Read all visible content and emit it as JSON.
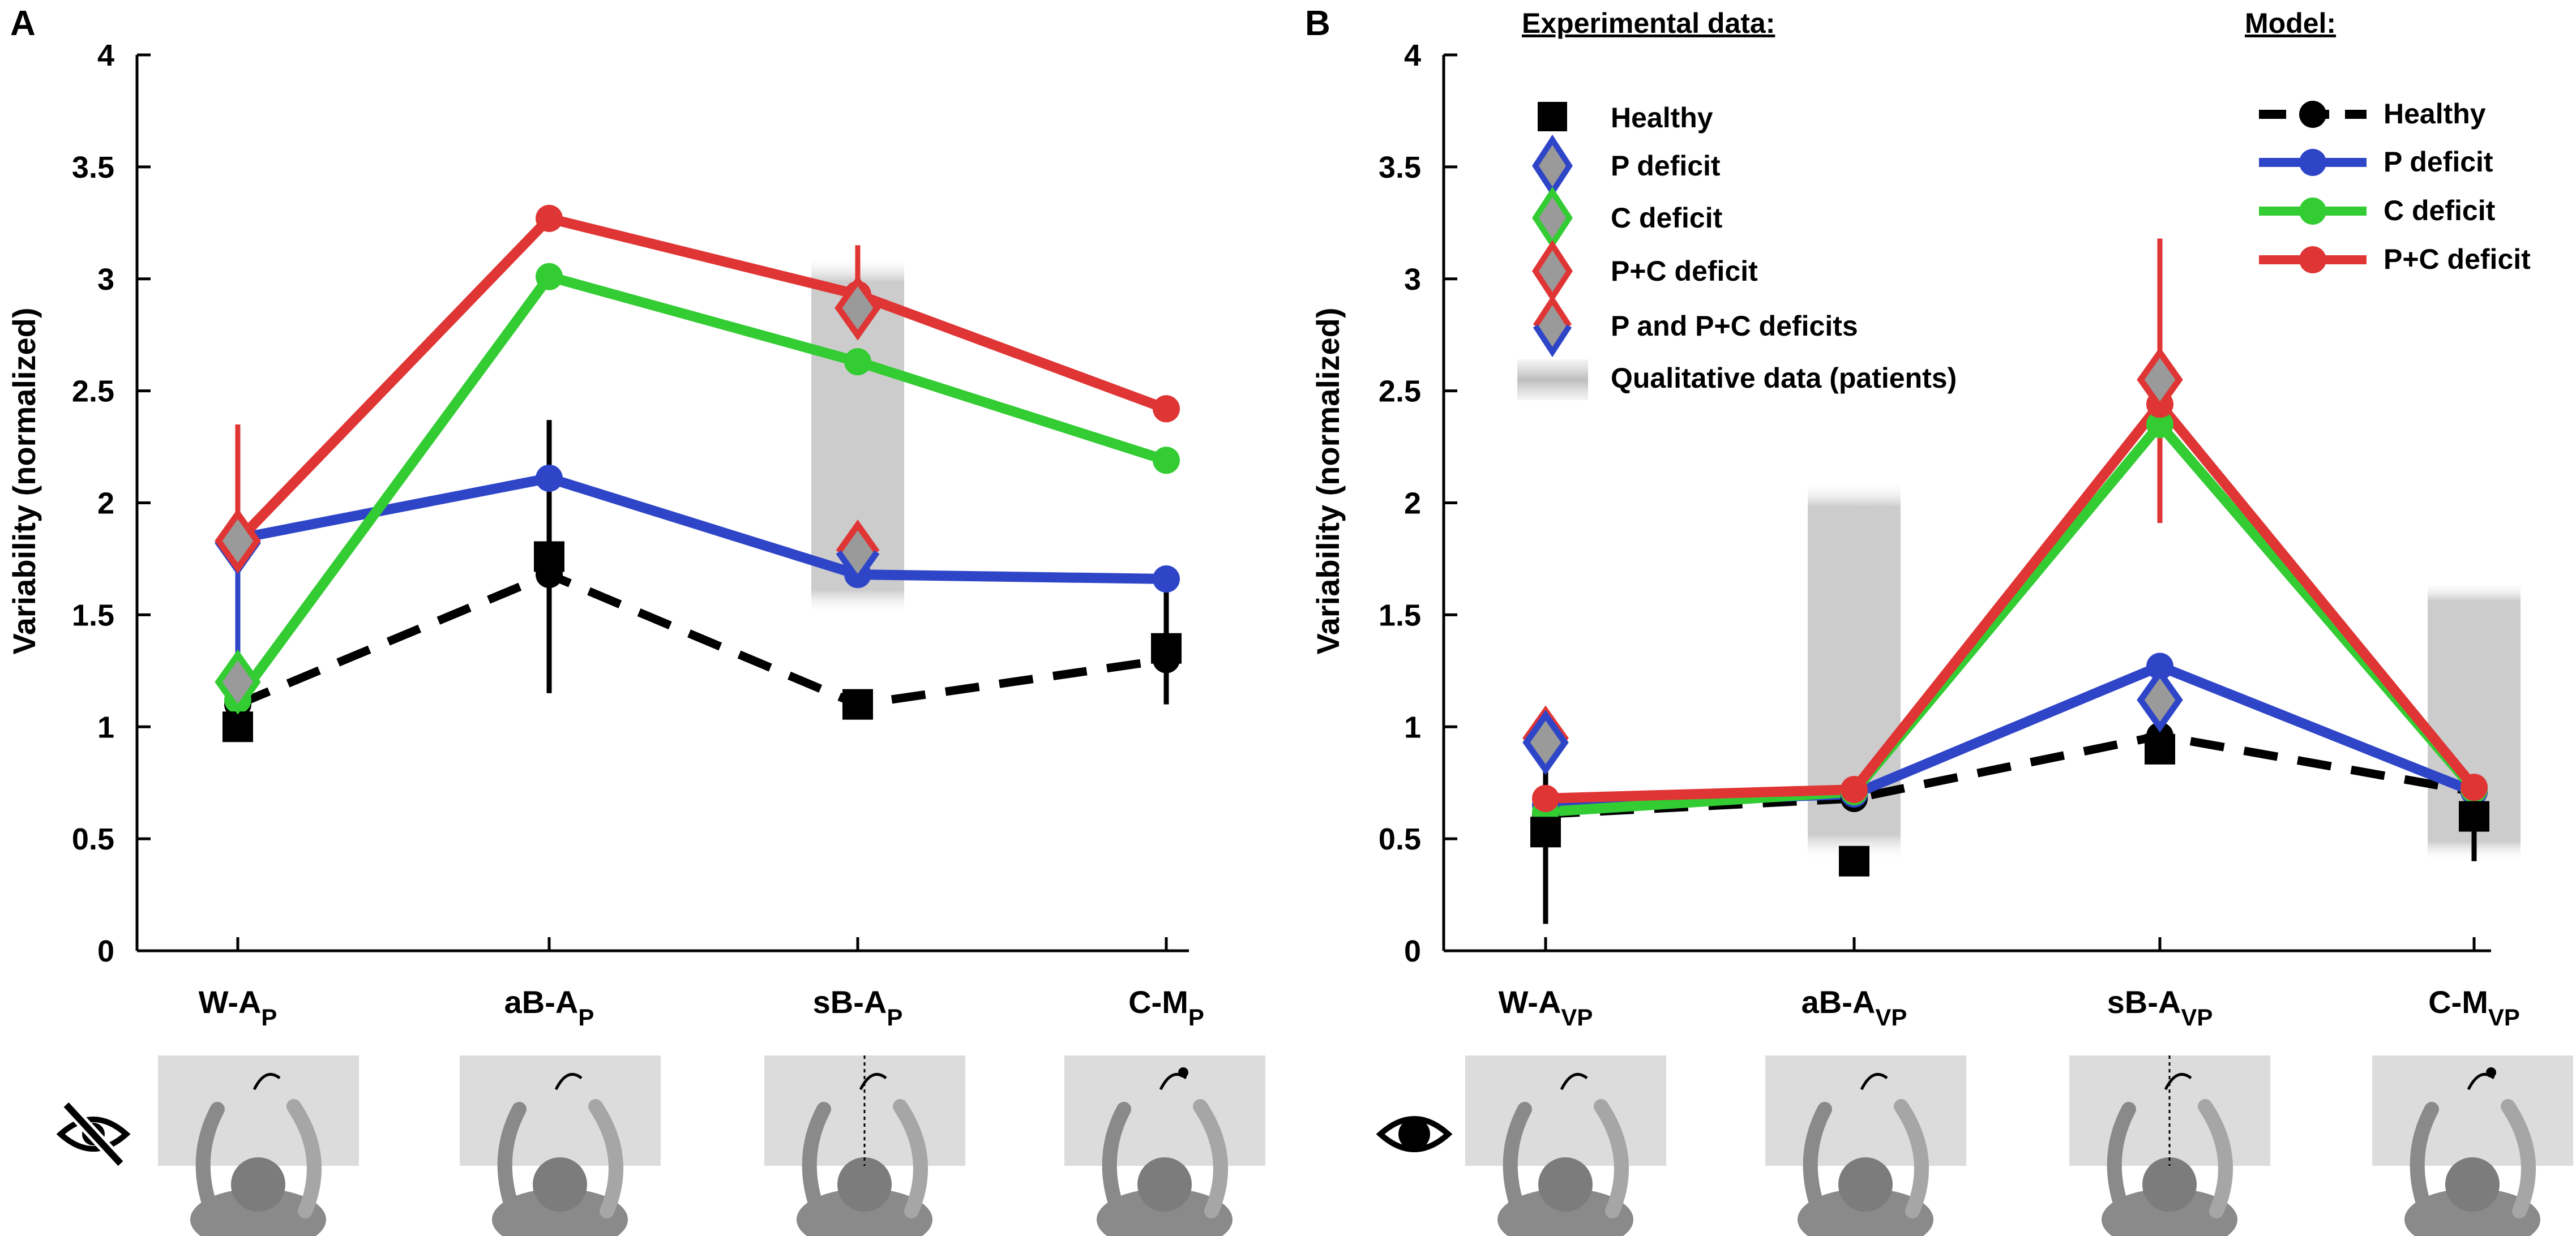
{
  "colors": {
    "healthy": "#000000",
    "p_deficit": "#2f45c8",
    "c_deficit": "#33cc33",
    "pc_deficit": "#e03535",
    "marker_fill": "#9a9a9a",
    "qual_band": "#cccccc",
    "scene_bg": "#dcdcdc",
    "figure_gray": "#8a8a8a"
  },
  "legend": {
    "experimental_title": "Experimental data:",
    "model_title": "Model:",
    "experimental_items": [
      "Healthy",
      "P deficit",
      "C deficit",
      "P+C deficit",
      "P and P+C deficits",
      "Qualitative data (patients)"
    ],
    "model_items": [
      "Healthy",
      "P deficit",
      "C deficit",
      "P+C deficit"
    ]
  },
  "chart_data": [
    {
      "panel_label": "A",
      "type": "line",
      "ylabel": "Variability (normalized)",
      "ylim": [
        0,
        4
      ],
      "yticks": [
        "0",
        "0.5",
        "1",
        "1.5",
        "2",
        "2.5",
        "3",
        "3.5",
        "4"
      ],
      "categories": [
        {
          "main": "W-A",
          "sub": "P"
        },
        {
          "main": "aB-A",
          "sub": "P"
        },
        {
          "main": "sB-A",
          "sub": "P"
        },
        {
          "main": "C-M",
          "sub": "P"
        }
      ],
      "qualitative_bands": [
        {
          "category": 2,
          "from": 1.5,
          "to": 3.1
        }
      ],
      "model": [
        {
          "name": "Healthy",
          "key": "healthy",
          "values": [
            1.1,
            1.68,
            1.1,
            1.3
          ]
        },
        {
          "name": "P deficit",
          "key": "p_deficit",
          "values": [
            1.84,
            2.11,
            1.68,
            1.66
          ]
        },
        {
          "name": "C deficit",
          "key": "c_deficit",
          "values": [
            1.12,
            3.01,
            2.63,
            2.19
          ]
        },
        {
          "name": "P+C deficit",
          "key": "pc_deficit",
          "values": [
            1.83,
            3.27,
            2.93,
            2.42
          ]
        }
      ],
      "experimental": [
        {
          "name": "Healthy",
          "marker": "square",
          "values": [
            1.0,
            1.76,
            1.1,
            1.35
          ]
        },
        {
          "name": "P deficit",
          "marker": "diamond",
          "edge": "p_deficit",
          "values": [
            1.82,
            null,
            null,
            null
          ]
        },
        {
          "name": "C deficit",
          "marker": "diamond",
          "edge": "c_deficit",
          "values": [
            1.2,
            null,
            null,
            null
          ]
        },
        {
          "name": "P+C deficit",
          "marker": "diamond",
          "edge": "pc_deficit",
          "values": [
            1.83,
            null,
            2.87,
            null
          ]
        },
        {
          "name": "P and P+C deficits",
          "marker": "diamond",
          "edge": "p_deficit",
          "edge2": "pc_deficit",
          "values": [
            null,
            null,
            1.78,
            null
          ]
        }
      ],
      "error_bars": [
        {
          "category": 0,
          "key": "pc_deficit",
          "low": 1.83,
          "high": 2.35
        },
        {
          "category": 0,
          "key": "p_deficit",
          "low": 1.2,
          "high": 1.82
        },
        {
          "category": 1,
          "key": "healthy",
          "low": 1.15,
          "high": 2.37
        },
        {
          "category": 2,
          "key": "pc_deficit",
          "low": 2.87,
          "high": 3.15
        },
        {
          "category": 3,
          "key": "healthy",
          "low": 1.1,
          "high": 1.6
        }
      ],
      "condition_icon": "eye-crossed-icon"
    },
    {
      "panel_label": "B",
      "type": "line",
      "ylabel": "Variability (normalized)",
      "ylim": [
        0,
        4
      ],
      "yticks": [
        "0",
        "0.5",
        "1",
        "1.5",
        "2",
        "2.5",
        "3",
        "3.5",
        "4"
      ],
      "categories": [
        {
          "main": "W-A",
          "sub": "VP"
        },
        {
          "main": "aB-A",
          "sub": "VP"
        },
        {
          "main": "sB-A",
          "sub": "VP"
        },
        {
          "main": "C-M",
          "sub": "VP"
        }
      ],
      "qualitative_bands": [
        {
          "category": 1,
          "from": 0.4,
          "to": 2.1
        },
        {
          "category": 3,
          "from": 0.4,
          "to": 1.65
        }
      ],
      "model": [
        {
          "name": "Healthy",
          "key": "healthy",
          "values": [
            0.61,
            0.68,
            0.96,
            0.71
          ]
        },
        {
          "name": "P deficit",
          "key": "p_deficit",
          "values": [
            0.65,
            0.7,
            1.27,
            0.71
          ]
        },
        {
          "name": "C deficit",
          "key": "c_deficit",
          "values": [
            0.62,
            0.71,
            2.35,
            0.72
          ]
        },
        {
          "name": "P+C deficit",
          "key": "pc_deficit",
          "values": [
            0.68,
            0.72,
            2.44,
            0.73
          ]
        }
      ],
      "experimental": [
        {
          "name": "Healthy",
          "marker": "square",
          "values": [
            0.53,
            0.4,
            0.9,
            0.6
          ]
        },
        {
          "name": "P+C deficit",
          "marker": "diamond",
          "edge": "pc_deficit",
          "values": [
            0.95,
            null,
            2.55,
            null
          ]
        },
        {
          "name": "P deficit",
          "marker": "diamond",
          "edge": "p_deficit",
          "values": [
            0.93,
            null,
            1.12,
            null
          ]
        }
      ],
      "error_bars": [
        {
          "category": 0,
          "key": "healthy",
          "low": 0.12,
          "high": 0.93
        },
        {
          "category": 2,
          "key": "pc_deficit",
          "low": 1.91,
          "high": 3.18
        },
        {
          "category": 3,
          "key": "healthy",
          "low": 0.4,
          "high": 0.72
        }
      ],
      "condition_icon": "eye-icon"
    }
  ]
}
